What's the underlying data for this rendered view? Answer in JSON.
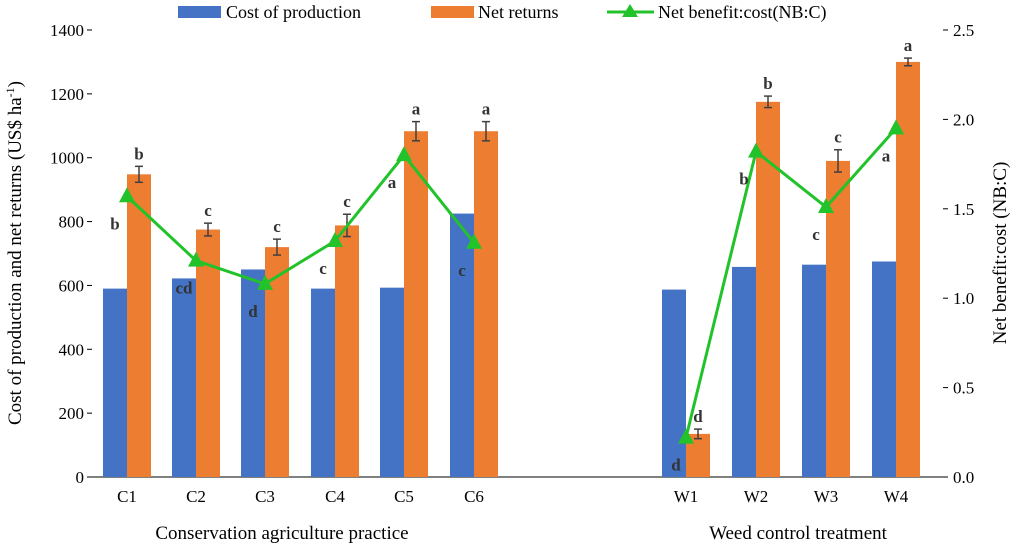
{
  "chart_data": {
    "type": "bar",
    "title": "",
    "legend": {
      "placement": "top",
      "entries": [
        "Cost of production",
        "Net returns",
        "Net benefit:cost(NB:C)"
      ]
    },
    "categories": [
      "C1",
      "C2",
      "C3",
      "C4",
      "C5",
      "C6",
      "W1",
      "W2",
      "W3",
      "W4"
    ],
    "groups": [
      {
        "label": "Conservation agriculture practice",
        "categories": [
          "C1",
          "C2",
          "C3",
          "C4",
          "C5",
          "C6"
        ]
      },
      {
        "label": "Weed control treatment",
        "categories": [
          "W1",
          "W2",
          "W3",
          "W4"
        ]
      }
    ],
    "ylabel": "Cost of production and net returns (US$ ha",
    "ylabel_sup": "-1",
    "ylabel_close": ")",
    "y2label": "Net benefit:cost (NB:C)",
    "ylim": [
      0,
      1400
    ],
    "y_ticks": [
      0,
      200,
      400,
      600,
      800,
      1000,
      1200,
      1400
    ],
    "y2lim": [
      0,
      2.5
    ],
    "y2_ticks": [
      "0.0",
      "0.5",
      "1.0",
      "1.5",
      "2.0",
      "2.5"
    ],
    "series": [
      {
        "name": "Cost of production",
        "kind": "bar",
        "color": "#4472C4",
        "values": [
          590,
          622,
          650,
          590,
          593,
          825,
          587,
          658,
          665,
          675
        ]
      },
      {
        "name": "Net returns",
        "kind": "bar",
        "color": "#ED7D31",
        "values": [
          948,
          775,
          720,
          788,
          1083,
          1083,
          135,
          1175,
          990,
          1300
        ],
        "errors": [
          25,
          20,
          25,
          35,
          30,
          30,
          15,
          18,
          35,
          12
        ],
        "letters": [
          "b",
          "c",
          "c",
          "c",
          "a",
          "a",
          "d",
          "b",
          "c",
          "a"
        ]
      },
      {
        "name": "Net benefit:cost(NB:C)",
        "kind": "line",
        "axis": "right",
        "color": "#22C32A",
        "values": [
          1.57,
          1.21,
          1.08,
          1.32,
          1.8,
          1.31,
          0.22,
          1.82,
          1.51,
          1.95
        ],
        "letters": [
          "b",
          "cd",
          "d",
          "c",
          "a",
          "c",
          "d",
          "b",
          "c",
          "a"
        ]
      }
    ]
  }
}
